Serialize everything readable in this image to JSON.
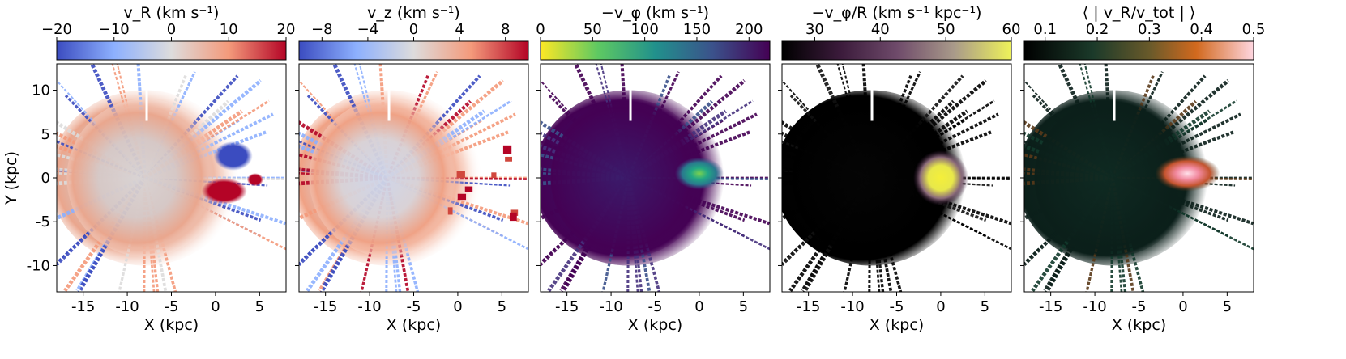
{
  "figure": {
    "ylabel": "Y (kpc)",
    "xlabel": "X (kpc)"
  },
  "chart_data": [
    {
      "type": "heatmap",
      "title": "v_R (km s⁻¹)",
      "colormap": "coolwarm",
      "colorbar": {
        "range": [
          -20,
          20
        ],
        "ticks": [
          -20,
          -10,
          0,
          10,
          20
        ],
        "tick_labels": [
          "−20",
          "−10",
          "0",
          "10",
          "20"
        ]
      },
      "xlabel": "X (kpc)",
      "ylabel": "Y (kpc)",
      "xlim": [
        -18,
        8
      ],
      "ylim": [
        -13,
        13
      ],
      "x_ticks": [
        -15,
        -10,
        -5,
        0,
        5
      ],
      "x_tick_labels": [
        "-15",
        "-10",
        "-5",
        "0",
        "5"
      ],
      "y_ticks": [
        10,
        5,
        0,
        -5,
        -10
      ],
      "y_tick_labels": [
        "10",
        "5",
        "0",
        "-5",
        "-10"
      ],
      "features": [
        {
          "x": 2,
          "y": 2.5,
          "value": -20,
          "note": "blue lobe"
        },
        {
          "x": 1,
          "y": -1.5,
          "value": 20,
          "note": "red lobe"
        },
        {
          "x": -12,
          "y": 0,
          "value": 6,
          "note": "outer disc"
        }
      ]
    },
    {
      "type": "heatmap",
      "title": "v_z (km s⁻¹)",
      "colormap": "coolwarm",
      "colorbar": {
        "range": [
          -10,
          10
        ],
        "ticks": [
          -8,
          -4,
          0,
          4,
          8
        ],
        "tick_labels": [
          "−8",
          "−4",
          "0",
          "4",
          "8"
        ]
      },
      "xlabel": "X (kpc)",
      "xlim": [
        -18,
        8
      ],
      "ylim": [
        -13,
        13
      ],
      "x_ticks": [
        -15,
        -10,
        -5,
        0,
        5
      ],
      "x_tick_labels": [
        "-15",
        "-10",
        "-5",
        "0",
        "5"
      ],
      "features": [
        {
          "x": -12,
          "y": 1,
          "value": 4,
          "note": "warm outer arc"
        },
        {
          "x": 3,
          "y": 0,
          "value": 8,
          "note": "red patches"
        }
      ]
    },
    {
      "type": "heatmap",
      "title": "−v_φ (km s⁻¹)",
      "colormap": "viridis_r",
      "colorbar": {
        "range": [
          0,
          220
        ],
        "ticks": [
          0,
          50,
          100,
          150,
          200
        ],
        "tick_labels": [
          "0",
          "50",
          "100",
          "150",
          "200"
        ]
      },
      "xlabel": "X (kpc)",
      "xlim": [
        -18,
        8
      ],
      "ylim": [
        -13,
        13
      ],
      "x_ticks": [
        -15,
        -10,
        -5,
        0,
        5
      ],
      "x_tick_labels": [
        "-15",
        "-10",
        "-5",
        "0",
        "5"
      ],
      "features": [
        {
          "x": -8,
          "y": 0,
          "value": 210,
          "note": "disc"
        },
        {
          "x": 0,
          "y": 0.5,
          "value": 80,
          "note": "inner bar region"
        }
      ]
    },
    {
      "type": "heatmap",
      "title": "−v_φ/R (km s⁻¹ kpc⁻¹)",
      "colormap": "cubehelix-like",
      "colorbar": {
        "range": [
          25,
          60
        ],
        "ticks": [
          30,
          40,
          50,
          60
        ],
        "tick_labels": [
          "30",
          "40",
          "50",
          "60"
        ]
      },
      "xlabel": "X (kpc)",
      "xlim": [
        -18,
        8
      ],
      "ylim": [
        -13,
        13
      ],
      "x_ticks": [
        -15,
        -10,
        -5,
        0,
        5
      ],
      "x_tick_labels": [
        "-15",
        "-10",
        "-5",
        "0",
        "5"
      ],
      "features": [
        {
          "x": -8,
          "y": 0,
          "value": 25,
          "note": "outer disc"
        },
        {
          "x": 0,
          "y": 0,
          "value": 60,
          "note": "inner peak"
        }
      ]
    },
    {
      "type": "heatmap",
      "title": "⟨ | v_R/v_tot | ⟩",
      "colormap": "dark-to-pink",
      "colorbar": {
        "range": [
          0.06,
          0.5
        ],
        "ticks": [
          0.1,
          0.2,
          0.3,
          0.4,
          0.5
        ],
        "tick_labels": [
          "0.1",
          "0.2",
          "0.3",
          "0.4",
          "0.5"
        ]
      },
      "xlabel": "X (kpc)",
      "xlim": [
        -18,
        8
      ],
      "ylim": [
        -13,
        13
      ],
      "x_ticks": [
        -15,
        -10,
        -5,
        0,
        5
      ],
      "x_tick_labels": [
        "-15",
        "-10",
        "-5",
        "0",
        "5"
      ],
      "features": [
        {
          "x": -8,
          "y": 0,
          "value": 0.1,
          "note": "disc"
        },
        {
          "x": 0.5,
          "y": 0.5,
          "value": 0.5,
          "note": "inner pink peak"
        }
      ]
    }
  ]
}
